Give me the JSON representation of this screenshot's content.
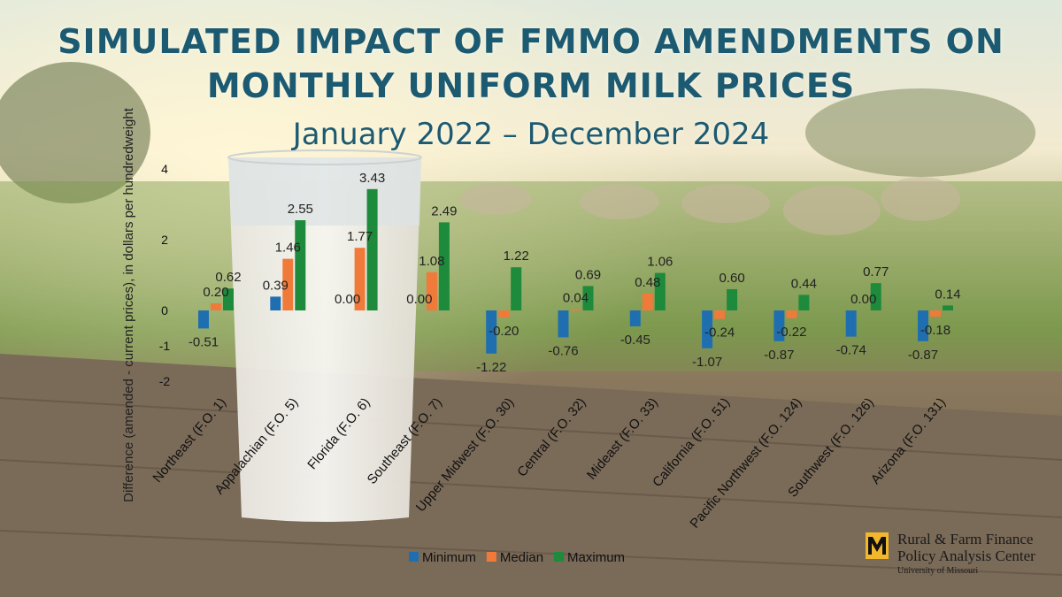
{
  "title": "SIMULATED IMPACT OF FMMO AMENDMENTS ON MONTHLY UNIFORM MILK PRICES",
  "subtitle": "January 2022 – December 2024",
  "colors": {
    "minimum": "#1f6fb0",
    "median": "#f07a3a",
    "maximum": "#1d8a3c",
    "title": "#1c5a72"
  },
  "logo": {
    "line1": "Rural & Farm Finance",
    "line2": "Policy Analysis Center",
    "line3": "University of Missouri",
    "icon": "mizzou-m-icon"
  },
  "chart_data": {
    "type": "bar",
    "ylabel": "Difference (amended - current prices), in dollars per hundredweight",
    "ylim": [
      -2,
      4
    ],
    "yticks": [
      4,
      2,
      0,
      -1,
      -2
    ],
    "grid": false,
    "legend_position": "bottom",
    "categories": [
      "Northeast (F.O. 1)",
      "Appalachian (F.O. 5)",
      "Florida (F.O. 6)",
      "Southeast (F.O. 7)",
      "Upper Midwest (F.O. 30)",
      "Central (F.O. 32)",
      "Mideast (F.O. 33)",
      "California (F.O. 51)",
      "Pacific Northwest (F.O. 124)",
      "Southwest (F.O. 126)",
      "Arizona (F.O. 131)"
    ],
    "series": [
      {
        "name": "Minimum",
        "values": [
          -0.51,
          0.39,
          0.0,
          0.0,
          -1.22,
          -0.76,
          -0.45,
          -1.07,
          -0.87,
          -0.74,
          -0.87
        ]
      },
      {
        "name": "Median",
        "values": [
          0.2,
          1.46,
          1.77,
          1.08,
          -0.2,
          0.04,
          0.48,
          -0.24,
          -0.22,
          0.0,
          -0.18
        ]
      },
      {
        "name": "Maximum",
        "values": [
          0.62,
          2.55,
          3.43,
          2.49,
          1.22,
          0.69,
          1.06,
          0.6,
          0.44,
          0.77,
          0.14
        ]
      }
    ]
  }
}
